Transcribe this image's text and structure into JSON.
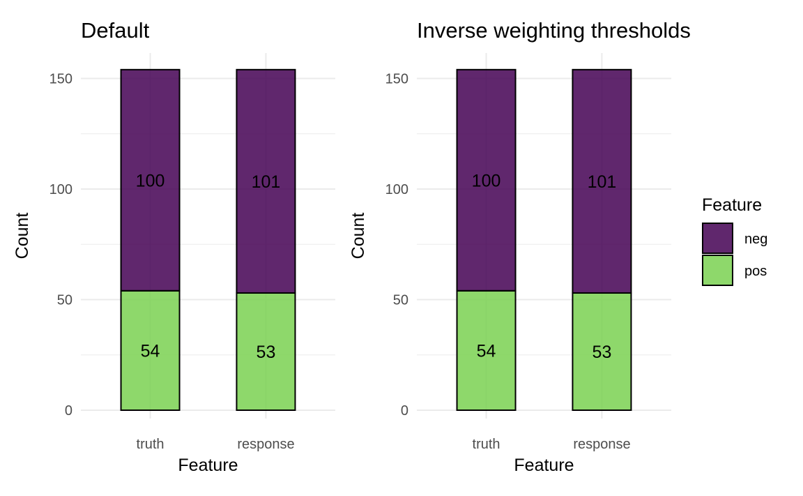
{
  "chart_data": [
    {
      "type": "bar",
      "stacked": true,
      "title": "Default",
      "xlabel": "Feature",
      "ylabel": "Count",
      "categories": [
        "truth",
        "response"
      ],
      "series": [
        {
          "name": "pos",
          "values": [
            54,
            53
          ],
          "color": "#7AD151"
        },
        {
          "name": "neg",
          "values": [
            100,
            101
          ],
          "color": "#440154"
        }
      ],
      "ylim": [
        0,
        154
      ],
      "yticks": [
        0,
        50,
        100,
        150
      ],
      "grid": true,
      "legend": "none"
    },
    {
      "type": "bar",
      "stacked": true,
      "title": "Inverse weighting thresholds",
      "xlabel": "Feature",
      "ylabel": "Count",
      "categories": [
        "truth",
        "response"
      ],
      "series": [
        {
          "name": "pos",
          "values": [
            54,
            53
          ],
          "color": "#7AD151"
        },
        {
          "name": "neg",
          "values": [
            100,
            101
          ],
          "color": "#440154"
        }
      ],
      "ylim": [
        0,
        154
      ],
      "yticks": [
        0,
        50,
        100,
        150
      ],
      "grid": true,
      "legend": "right"
    }
  ],
  "legend": {
    "title": "Feature",
    "items": [
      {
        "label": "neg",
        "color": "#440154"
      },
      {
        "label": "pos",
        "color": "#7AD151"
      }
    ]
  }
}
